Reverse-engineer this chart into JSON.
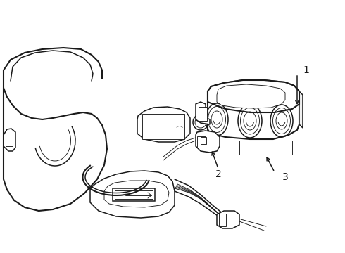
{
  "background_color": "#ffffff",
  "line_color": "#1a1a1a",
  "fig_width": 4.9,
  "fig_height": 3.6,
  "dpi": 100,
  "lw_main": 1.1,
  "lw_thin": 0.65,
  "lw_thick": 1.5,
  "ann_fontsize": 9,
  "label_1": "1",
  "label_2": "2",
  "label_3": "3"
}
